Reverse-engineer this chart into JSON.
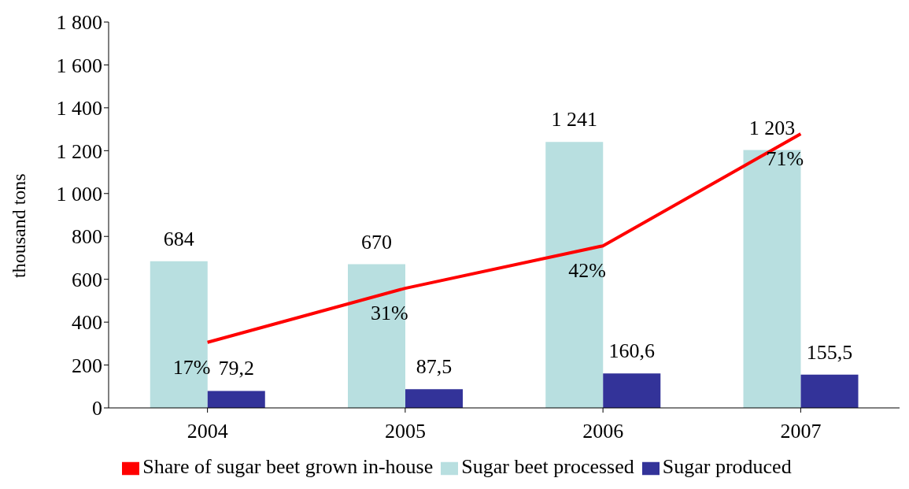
{
  "chart_data": {
    "type": "bar",
    "categories": [
      "2004",
      "2005",
      "2006",
      "2007"
    ],
    "ylabel": "thousand tons",
    "ylim": [
      0,
      1800
    ],
    "yticks": [
      0,
      200,
      400,
      600,
      800,
      {
        "value": 1000,
        "label": "1 000"
      },
      {
        "value": 1200,
        "label": "1 200"
      },
      {
        "value": 1400,
        "label": "1 400"
      },
      {
        "value": 1600,
        "label": "1 600"
      },
      {
        "value": 1800,
        "label": "1 800"
      }
    ],
    "y2lim": [
      0,
      100
    ],
    "series": [
      {
        "name": "Sugar beet processed",
        "color": "#b8dfe0",
        "values": [
          684,
          670,
          1241,
          1203
        ],
        "value_labels": [
          "684",
          "670",
          "1 241",
          "1 203"
        ]
      },
      {
        "name": "Sugar produced",
        "color": "#333399",
        "values": [
          79.2,
          87.5,
          160.6,
          155.5
        ],
        "value_labels": [
          "79,2",
          "87,5",
          "160,6",
          "155,5"
        ]
      },
      {
        "name": "Share of sugar beet grown in-house",
        "type": "line",
        "axis": "y2",
        "color": "#ff0000",
        "values": [
          17,
          31,
          42,
          71
        ],
        "value_labels": [
          "17%",
          "31%",
          "42%",
          "71%"
        ]
      }
    ],
    "grid": false,
    "legend": "bottom",
    "marker": "none"
  }
}
